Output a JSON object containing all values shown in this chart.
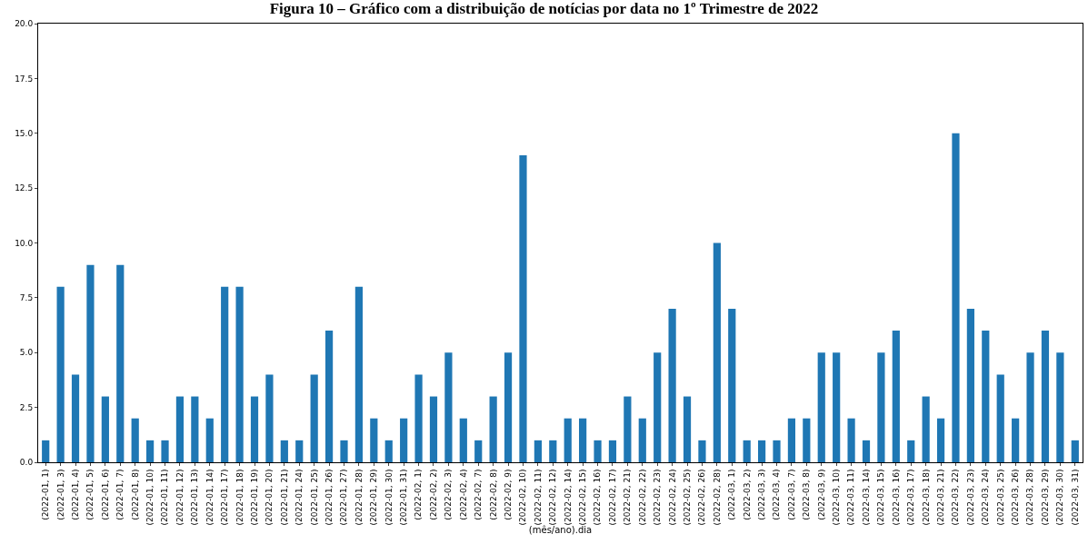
{
  "chart_data": {
    "type": "bar",
    "title": "Figura 10 – Gráfico com a distribuição de notícias por data no 1º Trimestre de 2022",
    "xlabel": "(mês/ano).dia",
    "categories": [
      "(2022-01, 1)",
      "(2022-01, 3)",
      "(2022-01, 4)",
      "(2022-01, 5)",
      "(2022-01, 6)",
      "(2022-01, 7)",
      "(2022-01, 8)",
      "(2022-01, 10)",
      "(2022-01, 11)",
      "(2022-01, 12)",
      "(2022-01, 13)",
      "(2022-01, 14)",
      "(2022-01, 17)",
      "(2022-01, 18)",
      "(2022-01, 19)",
      "(2022-01, 20)",
      "(2022-01, 21)",
      "(2022-01, 24)",
      "(2022-01, 25)",
      "(2022-01, 26)",
      "(2022-01, 27)",
      "(2022-01, 28)",
      "(2022-01, 29)",
      "(2022-01, 30)",
      "(2022-01, 31)",
      "(2022-02, 1)",
      "(2022-02, 2)",
      "(2022-02, 3)",
      "(2022-02, 4)",
      "(2022-02, 7)",
      "(2022-02, 8)",
      "(2022-02, 9)",
      "(2022-02, 10)",
      "(2022-02, 11)",
      "(2022-02, 12)",
      "(2022-02, 14)",
      "(2022-02, 15)",
      "(2022-02, 16)",
      "(2022-02, 17)",
      "(2022-02, 21)",
      "(2022-02, 22)",
      "(2022-02, 23)",
      "(2022-02, 24)",
      "(2022-02, 25)",
      "(2022-02, 26)",
      "(2022-02, 28)",
      "(2022-03, 1)",
      "(2022-03, 2)",
      "(2022-03, 3)",
      "(2022-03, 4)",
      "(2022-03, 7)",
      "(2022-03, 8)",
      "(2022-03, 9)",
      "(2022-03, 10)",
      "(2022-03, 11)",
      "(2022-03, 14)",
      "(2022-03, 15)",
      "(2022-03, 16)",
      "(2022-03, 17)",
      "(2022-03, 18)",
      "(2022-03, 21)",
      "(2022-03, 22)",
      "(2022-03, 23)",
      "(2022-03, 24)",
      "(2022-03, 25)",
      "(2022-03, 26)",
      "(2022-03, 28)",
      "(2022-03, 29)",
      "(2022-03, 30)",
      "(2022-03, 31)"
    ],
    "values": [
      1,
      8,
      4,
      9,
      3,
      9,
      2,
      1,
      1,
      3,
      3,
      2,
      8,
      8,
      3,
      4,
      1,
      1,
      4,
      6,
      1,
      8,
      2,
      1,
      2,
      4,
      3,
      5,
      2,
      1,
      3,
      5,
      14,
      1,
      1,
      2,
      2,
      1,
      1,
      3,
      2,
      5,
      7,
      3,
      1,
      10,
      7,
      1,
      1,
      1,
      2,
      2,
      5,
      5,
      2,
      1,
      5,
      6,
      1,
      3,
      2,
      15,
      7,
      6,
      4,
      2,
      5,
      6,
      5,
      1
    ],
    "color": "#1f77b4",
    "ylim": [
      0,
      20
    ],
    "yticks": [
      {
        "value": 0,
        "label": "0.0"
      },
      {
        "value": 2.5,
        "label": "2.5"
      },
      {
        "value": 5,
        "label": "5.0"
      },
      {
        "value": 7.5,
        "label": "7.5"
      },
      {
        "value": 10,
        "label": "10.0"
      },
      {
        "value": 12.5,
        "label": "12.5"
      },
      {
        "value": 15,
        "label": "15.0"
      },
      {
        "value": 17.5,
        "label": "17.5"
      },
      {
        "value": 20,
        "label": "20.0"
      }
    ]
  }
}
